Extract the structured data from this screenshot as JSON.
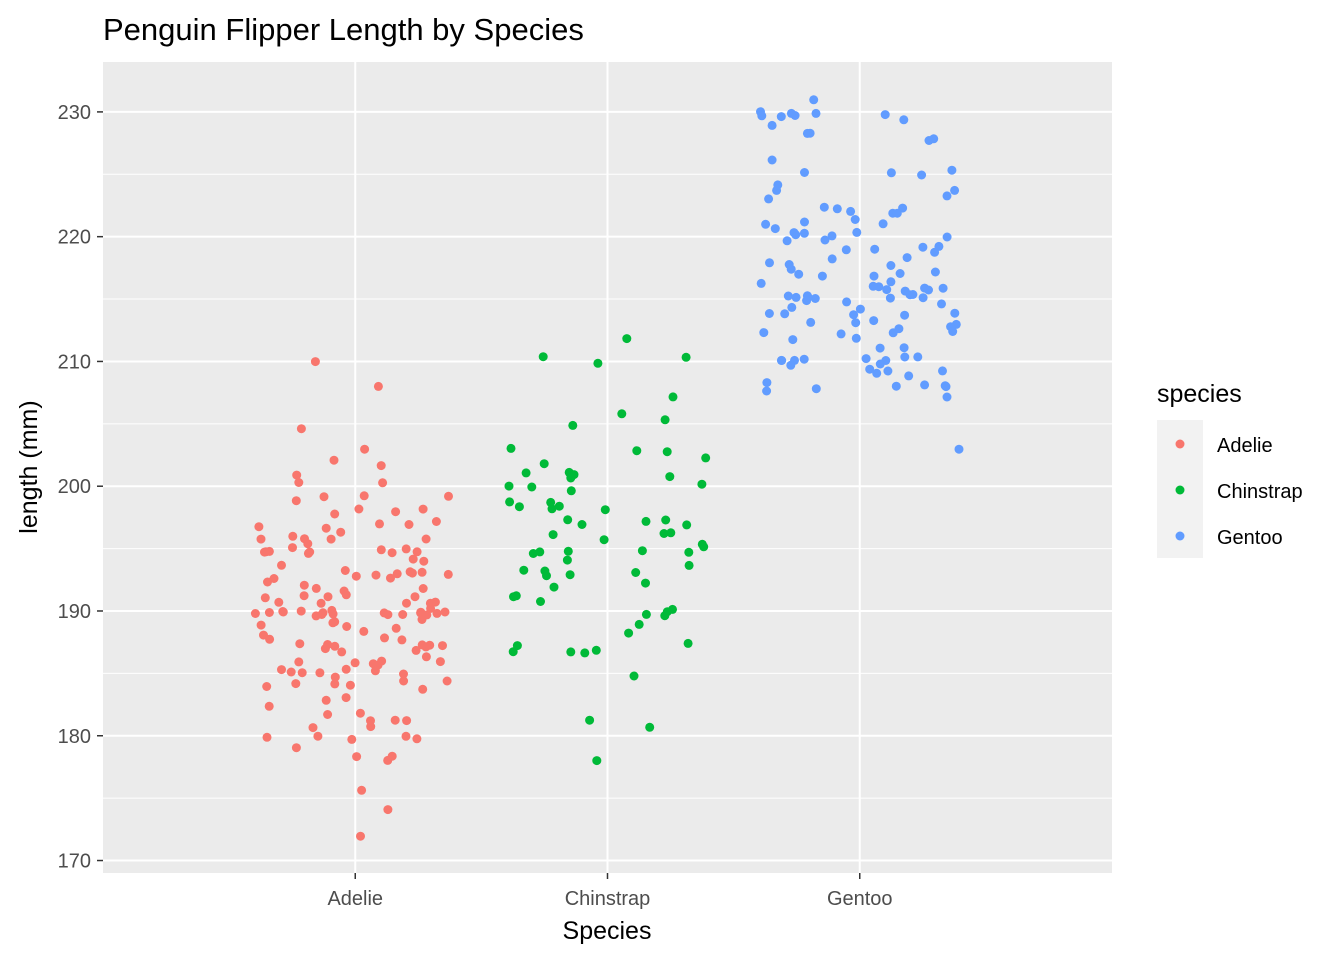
{
  "chart_data": {
    "type": "scatter",
    "title": "Penguin Flipper Length by Species",
    "xlabel": "Species",
    "ylabel": "length (mm)",
    "categories": [
      "Adelie",
      "Chinstrap",
      "Gentoo"
    ],
    "yticks": [
      170,
      180,
      190,
      200,
      210,
      220,
      230
    ],
    "ylim": [
      169,
      234
    ],
    "grid": true,
    "jitter": true,
    "legend": {
      "title": "species",
      "position": "right"
    },
    "series": [
      {
        "name": "Adelie",
        "color": "#F8766D",
        "values": [
          181,
          186,
          195,
          193,
          190,
          181,
          195,
          193,
          190,
          186,
          180,
          182,
          191,
          198,
          185,
          195,
          197,
          184,
          194,
          174,
          180,
          189,
          185,
          180,
          187,
          183,
          187,
          172,
          180,
          178,
          178,
          188,
          184,
          195,
          196,
          190,
          180,
          181,
          184,
          182,
          195,
          186,
          196,
          185,
          190,
          182,
          179,
          190,
          191,
          186,
          188,
          190,
          200,
          187,
          191,
          186,
          193,
          181,
          194,
          185,
          195,
          185,
          192,
          184,
          192,
          195,
          188,
          190,
          198,
          190,
          190,
          196,
          197,
          190,
          195,
          191,
          184,
          187,
          195,
          189,
          196,
          187,
          193,
          191,
          194,
          190,
          189,
          189,
          190,
          202,
          205,
          185,
          186,
          187,
          208,
          190,
          196,
          178,
          192,
          192,
          203,
          183,
          190,
          193,
          184,
          199,
          190,
          181,
          197,
          198,
          191,
          193,
          197,
          191,
          196,
          188,
          199,
          189,
          189,
          187,
          198,
          176,
          202,
          186,
          199,
          191,
          195,
          191,
          210,
          190,
          197,
          193,
          199,
          187,
          190,
          191,
          200,
          185,
          193,
          193,
          187,
          188,
          190,
          192,
          185,
          190,
          184,
          195,
          193,
          187,
          201
        ]
      },
      {
        "name": "Chinstrap",
        "color": "#00BA38",
        "values": [
          192,
          196,
          193,
          188,
          197,
          198,
          178,
          197,
          195,
          198,
          193,
          194,
          185,
          201,
          190,
          201,
          197,
          181,
          190,
          195,
          191,
          187,
          193,
          195,
          197,
          200,
          200,
          191,
          205,
          187,
          201,
          187,
          203,
          195,
          199,
          195,
          210,
          192,
          205,
          210,
          187,
          196,
          196,
          196,
          201,
          190,
          212,
          187,
          198,
          199,
          201,
          193,
          203,
          187,
          197,
          191,
          203,
          202,
          194,
          206,
          189,
          195,
          207,
          202,
          193,
          210,
          198,
          195,
          200,
          190,
          181,
          200
        ]
      },
      {
        "name": "Gentoo",
        "color": "#619CFF",
        "values": [
          211,
          230,
          210,
          218,
          215,
          210,
          211,
          219,
          209,
          215,
          214,
          216,
          214,
          216,
          214,
          213,
          210,
          217,
          210,
          221,
          209,
          222,
          218,
          215,
          213,
          215,
          215,
          215,
          216,
          215,
          210,
          220,
          222,
          209,
          207,
          230,
          220,
          220,
          213,
          219,
          208,
          208,
          208,
          225,
          210,
          216,
          222,
          217,
          210,
          225,
          213,
          215,
          210,
          220,
          210,
          225,
          217,
          220,
          208,
          220,
          208,
          224,
          208,
          221,
          214,
          231,
          219,
          230,
          214,
          229,
          220,
          223,
          216,
          221,
          221,
          217,
          216,
          230,
          209,
          220,
          215,
          223,
          212,
          221,
          212,
          224,
          212,
          228,
          218,
          218,
          212,
          230,
          218,
          228,
          212,
          224,
          214,
          226,
          216,
          222,
          203,
          225,
          219,
          228,
          215,
          228,
          216,
          215,
          210,
          219,
          208,
          209,
          216,
          229,
          213,
          230,
          217,
          230,
          217,
          222,
          214,
          215,
          222,
          212,
          213
        ]
      }
    ]
  }
}
